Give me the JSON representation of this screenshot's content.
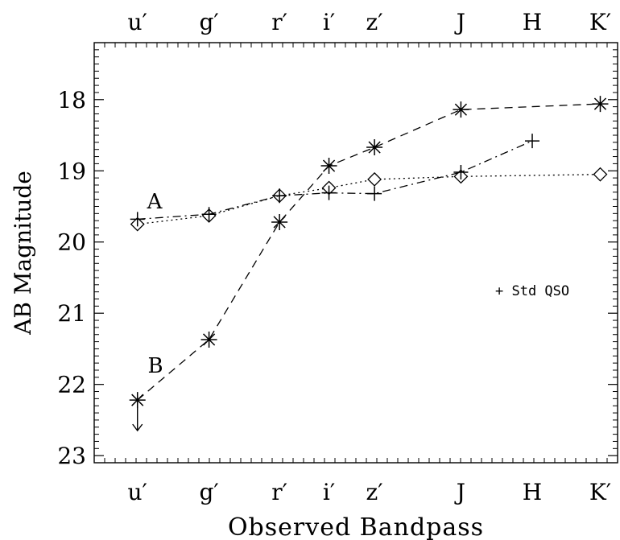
{
  "chart_data": {
    "type": "line",
    "xlabel": "Observed Bandpass",
    "ylabel": "AB Magnitude",
    "categories": [
      "u′",
      "g′",
      "r′",
      "i′",
      "z′",
      "J",
      "H",
      "K′"
    ],
    "x_wavelength_um": [
      0.355,
      0.469,
      0.617,
      0.748,
      0.893,
      1.25,
      1.65,
      2.15
    ],
    "xlim_um": [
      0.3,
      2.3
    ],
    "ylim": [
      23.1,
      17.2
    ],
    "y_reversed": true,
    "y_ticks": [
      18,
      19,
      20,
      21,
      22,
      23
    ],
    "object_labels": [
      "A",
      "B"
    ],
    "legend_text": "+ Std QSO",
    "series": [
      {
        "line": "dotted",
        "marker": "diamond",
        "x": [
          0.355,
          0.469,
          0.617,
          0.748,
          0.893,
          1.25,
          2.15
        ],
        "y": [
          19.75,
          19.63,
          19.35,
          19.24,
          19.12,
          19.08,
          19.05
        ]
      },
      {
        "line": "dashed",
        "marker": "asterisk",
        "x": [
          0.355,
          0.469,
          0.617,
          0.748,
          0.893,
          1.25,
          2.15
        ],
        "y": [
          22.22,
          21.37,
          19.72,
          18.93,
          18.67,
          18.14,
          18.06
        ],
        "upper_limit_index": 0
      },
      {
        "name": "Std QSO",
        "line": "dashdot",
        "marker": "plus",
        "x": [
          0.355,
          0.469,
          0.617,
          0.748,
          0.893,
          1.25,
          1.65
        ],
        "y": [
          19.68,
          19.61,
          19.35,
          19.31,
          19.32,
          19.02,
          18.58
        ]
      }
    ]
  }
}
